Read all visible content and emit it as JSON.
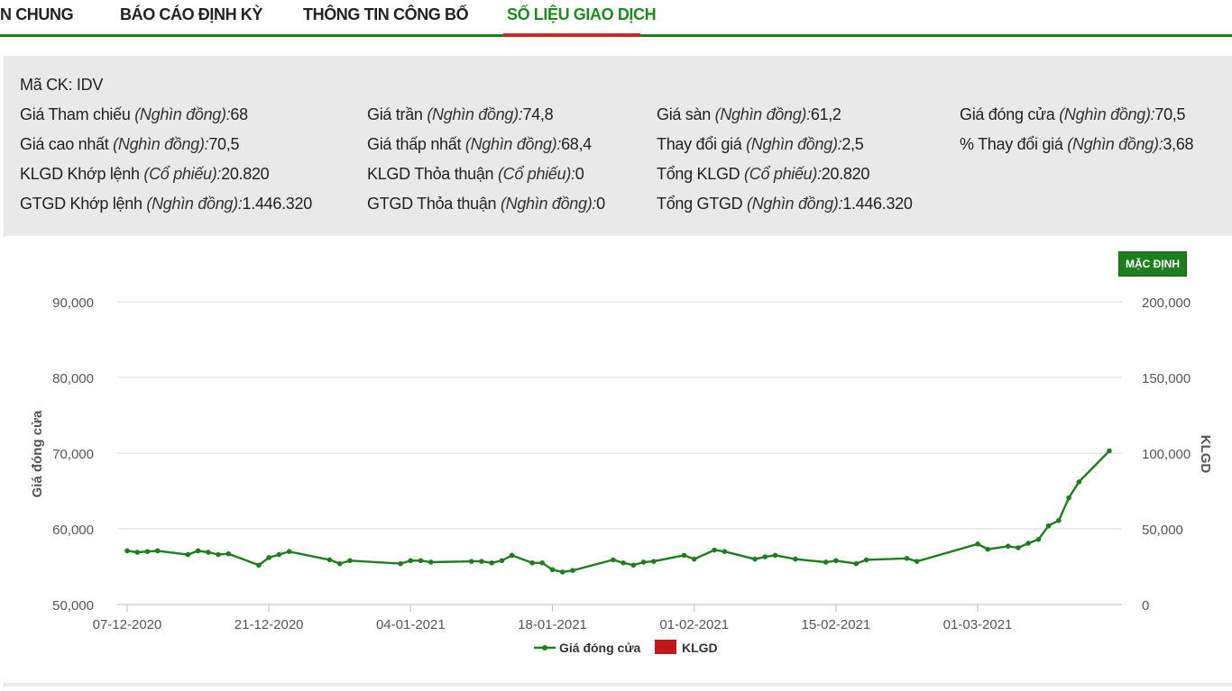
{
  "tabs": [
    {
      "label": "N CHUNG",
      "active": false
    },
    {
      "label": "BÁO CÁO ĐỊNH KỲ",
      "active": false
    },
    {
      "label": "THÔNG TIN CÔNG BỐ",
      "active": false
    },
    {
      "label": "SỐ LIỆU GIAO DỊCH",
      "active": true
    }
  ],
  "info": {
    "ticker_label": "Mã CK:",
    "ticker_value": "IDV",
    "fields": [
      {
        "label": "Giá Tham chiếu",
        "unit": "(Nghìn đồng):",
        "value": "68"
      },
      {
        "label": "Giá trần",
        "unit": "(Nghìn đồng):",
        "value": "74,8"
      },
      {
        "label": "Giá sàn",
        "unit": "(Nghìn đồng):",
        "value": "61,2"
      },
      {
        "label": "Giá đóng cửa",
        "unit": "(Nghìn đồng):",
        "value": "70,5"
      },
      {
        "label": "Giá cao nhất",
        "unit": "(Nghìn đồng):",
        "value": "70,5"
      },
      {
        "label": "Giá thấp nhất",
        "unit": "(Nghìn đồng):",
        "value": "68,4"
      },
      {
        "label": "Thay đổi giá",
        "unit": "(Nghìn đồng):",
        "value": "2,5"
      },
      {
        "label": "% Thay đổi giá",
        "unit": "(Nghìn đồng):",
        "value": "3,68"
      },
      {
        "label": "KLGD Khớp lệnh",
        "unit": "(Cổ phiếu):",
        "value": "20.820"
      },
      {
        "label": "KLGD Thỏa thuận",
        "unit": "(Cổ phiếu):",
        "value": "0"
      },
      {
        "label": "Tổng KLGD",
        "unit": "(Cổ phiếu):",
        "value": "20.820"
      },
      {
        "label": "GTGD Khớp lệnh",
        "unit": "(Nghìn đồng):",
        "value": "1.446.320"
      },
      {
        "label": "GTGD Thỏa thuận",
        "unit": "(Nghìn đồng):",
        "value": "0"
      },
      {
        "label": "Tổng GTGD",
        "unit": "(Nghìn đồng):",
        "value": "1.446.320"
      }
    ]
  },
  "default_button_label": "MẶC ĐỊNH",
  "colors": {
    "price_line": "#1e7e1e",
    "volume_bar": "#c0191c",
    "tab_active": "#1f8a1f",
    "tab_underline": "#d0262a"
  },
  "chart_data": {
    "type": "bar+line",
    "ylabel_left": "Giá đóng cửa",
    "ylabel_right": "KLGD",
    "ylim_left": [
      50000,
      90000
    ],
    "ylim_right": [
      0,
      200000
    ],
    "left_ticks": [
      "50,000",
      "60,000",
      "70,000",
      "80,000",
      "90,000"
    ],
    "right_ticks": [
      "0",
      "50,000",
      "100,000",
      "150,000",
      "200,000"
    ],
    "x_ticks": [
      "07-12-2020",
      "21-12-2020",
      "04-01-2021",
      "18-01-2021",
      "01-02-2021",
      "15-02-2021",
      "01-03-2021"
    ],
    "x_range_days": [
      0,
      92
    ],
    "legend": [
      {
        "name": "Giá đóng cửa",
        "kind": "line"
      },
      {
        "name": "KLGD",
        "kind": "bar"
      }
    ],
    "series": [
      {
        "name": "Giá đóng cửa",
        "type": "line",
        "x": [
          0,
          1,
          2,
          3,
          6,
          7,
          8,
          9,
          10,
          13,
          14,
          15,
          16,
          20,
          21,
          22,
          27,
          28,
          29,
          30,
          34,
          35,
          36,
          37,
          38,
          40,
          41,
          42,
          43,
          44,
          48,
          49,
          50,
          51,
          52,
          55,
          56,
          58,
          59,
          62,
          63,
          64,
          66,
          69,
          70,
          72,
          73,
          77,
          78,
          84,
          85,
          87,
          88,
          89,
          90,
          91,
          92,
          93,
          94,
          97
        ],
        "y": [
          57100,
          56900,
          57000,
          57100,
          56600,
          57100,
          56900,
          56600,
          56700,
          55200,
          56200,
          56600,
          57000,
          55900,
          55400,
          55800,
          55400,
          55800,
          55800,
          55600,
          55700,
          55700,
          55500,
          55800,
          56500,
          55500,
          55500,
          54600,
          54300,
          54500,
          55900,
          55500,
          55200,
          55600,
          55700,
          56500,
          56000,
          57200,
          57000,
          56000,
          56300,
          56500,
          56000,
          55600,
          55800,
          55400,
          55900,
          56100,
          55700,
          58000,
          57300,
          57700,
          57500,
          58100,
          58600,
          60400,
          61100,
          64100,
          66200,
          70300
        ]
      }
    ]
  }
}
